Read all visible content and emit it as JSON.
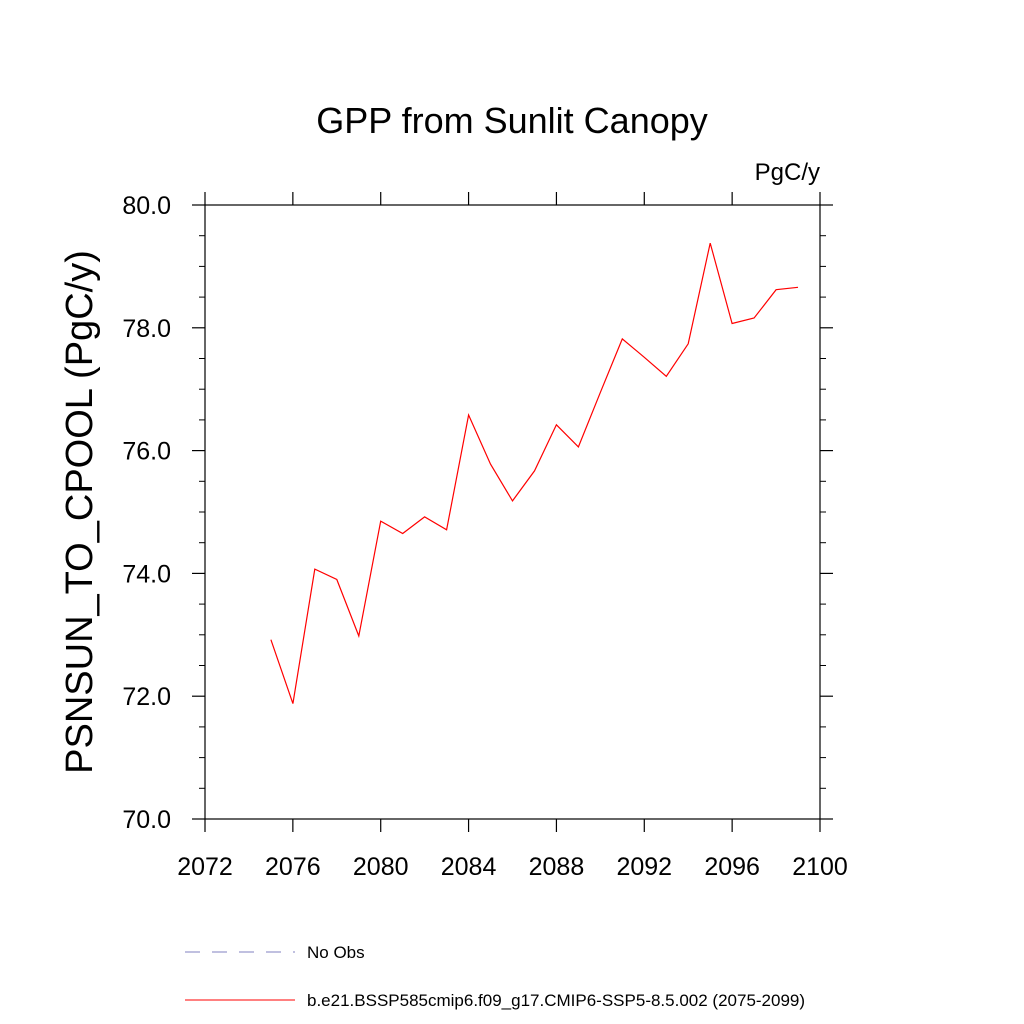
{
  "chart_data": {
    "type": "line",
    "title": "GPP from Sunlit Canopy",
    "units_label": "PgC/y",
    "ylabel": "PSNSUN_TO_CPOOL  (PgC/y)",
    "xlabel": "",
    "xlim": [
      2072,
      2100
    ],
    "ylim": [
      70.0,
      80.0
    ],
    "xticks": [
      2072,
      2076,
      2080,
      2084,
      2088,
      2092,
      2096,
      2100
    ],
    "xtick_labels": [
      "2072",
      "2076",
      "2080",
      "2084",
      "2088",
      "2092",
      "2096",
      "2100"
    ],
    "yticks": [
      70.0,
      72.0,
      74.0,
      76.0,
      78.0,
      80.0
    ],
    "ytick_labels": [
      "70.0",
      "72.0",
      "74.0",
      "76.0",
      "78.0",
      "80.0"
    ],
    "grid": false,
    "legend_position": "bottom",
    "series": [
      {
        "name": "b.e21.BSSP585cmip6.f09_g17.CMIP6-SSP5-8.5.002 (2075-2099)",
        "color": "#ff0000",
        "style": "solid",
        "x": [
          2075,
          2076,
          2077,
          2078,
          2079,
          2080,
          2081,
          2082,
          2083,
          2084,
          2085,
          2086,
          2087,
          2088,
          2089,
          2090,
          2091,
          2092,
          2093,
          2094,
          2095,
          2096,
          2097,
          2098,
          2099
        ],
        "y": [
          72.92,
          71.88,
          74.07,
          73.9,
          72.98,
          74.85,
          74.65,
          74.92,
          74.71,
          76.58,
          75.78,
          75.18,
          75.67,
          76.42,
          76.06,
          76.95,
          77.82,
          77.52,
          77.21,
          77.74,
          79.38,
          78.07,
          78.16,
          78.62,
          78.66
        ]
      }
    ],
    "legend": [
      {
        "label": "No Obs",
        "color": "#8080c0",
        "style": "dashed"
      },
      {
        "label": "b.e21.BSSP585cmip6.f09_g17.CMIP6-SSP5-8.5.002 (2075-2099)",
        "color": "#ff0000",
        "style": "solid"
      }
    ]
  }
}
